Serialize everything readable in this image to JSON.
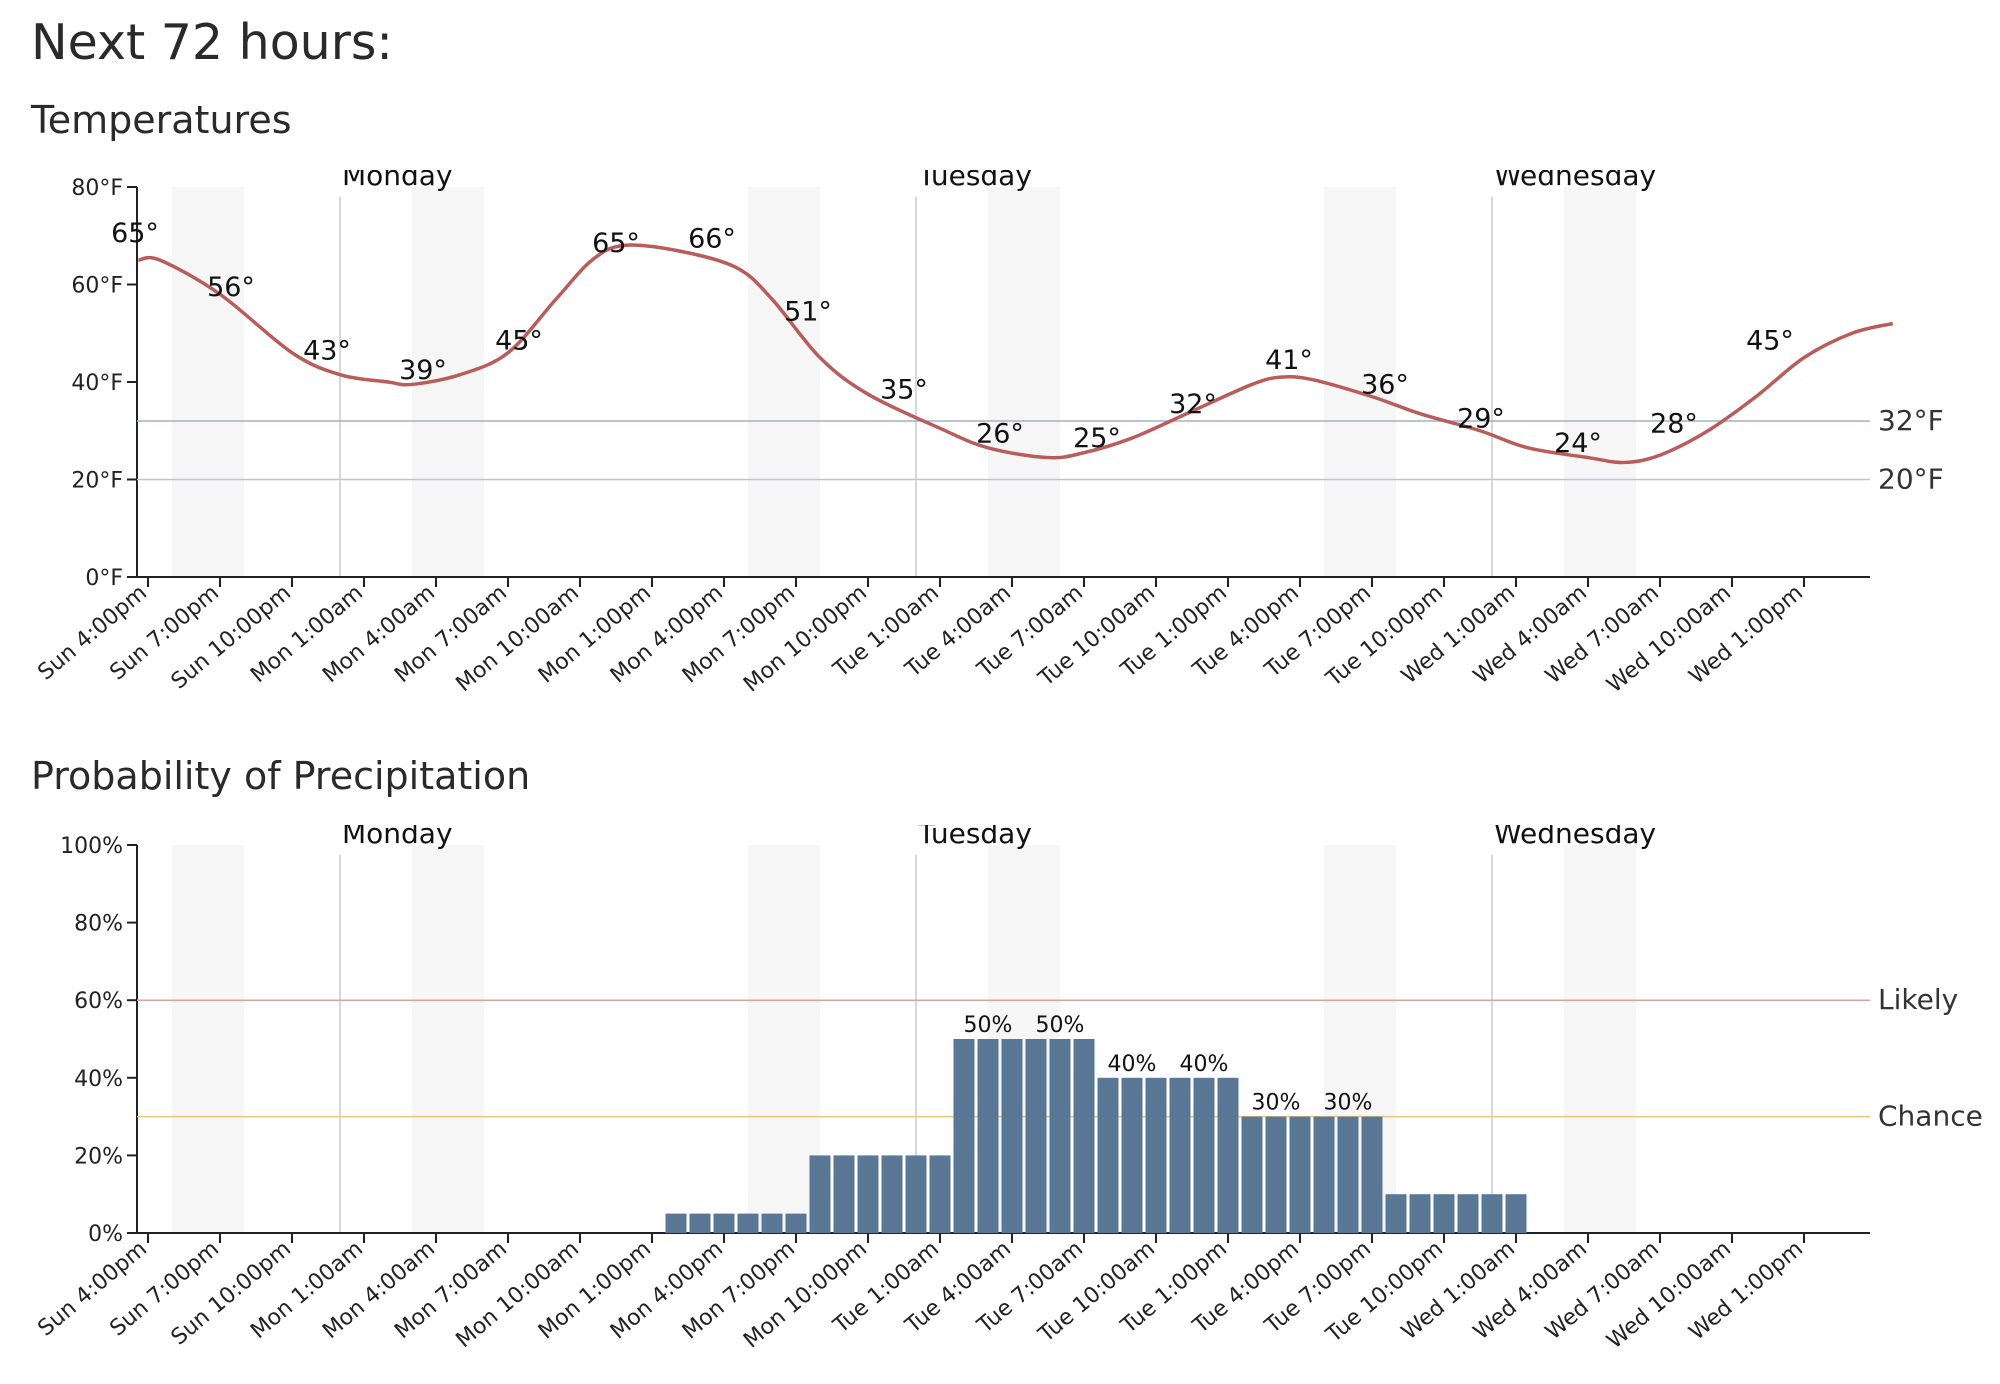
{
  "page": {
    "title": "Next 72 hours:"
  },
  "chart_data": [
    {
      "type": "line",
      "title": "Temperatures",
      "y_unit": "°F",
      "ylim": [
        0,
        80
      ],
      "y_ticks": [
        "0°F",
        "20°F",
        "40°F",
        "60°F",
        "80°F"
      ],
      "x_ticks": [
        "Sun 4:00pm",
        "Sun 7:00pm",
        "Sun 10:00pm",
        "Mon 1:00am",
        "Mon 4:00am",
        "Mon 7:00am",
        "Mon 10:00am",
        "Mon 1:00pm",
        "Mon 4:00pm",
        "Mon 7:00pm",
        "Mon 10:00pm",
        "Tue 1:00am",
        "Tue 4:00am",
        "Tue 7:00am",
        "Tue 10:00am",
        "Tue 1:00pm",
        "Tue 4:00pm",
        "Tue 7:00pm",
        "Tue 10:00pm",
        "Wed 1:00am",
        "Wed 4:00am",
        "Wed 7:00am",
        "Wed 10:00am",
        "Wed 1:00pm"
      ],
      "day_labels": [
        "Monday",
        "Tuesday",
        "Wednesday"
      ],
      "values": [
        65,
        56,
        43,
        39,
        45,
        65,
        66,
        51,
        35,
        26,
        25,
        32,
        41,
        36,
        29,
        24,
        28,
        45
      ],
      "point_labels": [
        "65°",
        "56°",
        "43°",
        "39°",
        "45°",
        "65°",
        "66°",
        "51°",
        "35°",
        "26°",
        "25°",
        "32°",
        "41°",
        "36°",
        "29°",
        "24°",
        "28°",
        "45°"
      ],
      "reference_lines": [
        {
          "label": "32°F",
          "value": 32,
          "color": "#9fb3c4"
        },
        {
          "label": "20°F",
          "value": 20,
          "color": "#b8c7d4"
        }
      ],
      "line_color": "#b85c5c"
    },
    {
      "type": "bar",
      "title": "Probability of Precipitation",
      "ylim": [
        0,
        100
      ],
      "y_ticks": [
        "0%",
        "20%",
        "40%",
        "60%",
        "80%",
        "100%"
      ],
      "x_ticks": [
        "Sun 4:00pm",
        "Sun 7:00pm",
        "Sun 10:00pm",
        "Mon 1:00am",
        "Mon 4:00am",
        "Mon 7:00am",
        "Mon 10:00am",
        "Mon 1:00pm",
        "Mon 4:00pm",
        "Mon 7:00pm",
        "Mon 10:00pm",
        "Tue 1:00am",
        "Tue 4:00am",
        "Tue 7:00am",
        "Tue 10:00am",
        "Tue 1:00pm",
        "Tue 4:00pm",
        "Tue 7:00pm",
        "Tue 10:00pm",
        "Wed 1:00am",
        "Wed 4:00am",
        "Wed 7:00am",
        "Wed 10:00am",
        "Wed 1:00pm"
      ],
      "day_labels": [
        "Monday",
        "Tuesday",
        "Wednesday"
      ],
      "values": [
        0,
        0,
        0,
        0,
        0,
        0,
        0,
        0,
        0,
        0,
        0,
        0,
        0,
        0,
        0,
        0,
        0,
        0,
        0,
        0,
        0,
        0,
        5,
        5,
        5,
        5,
        5,
        5,
        20,
        20,
        20,
        20,
        20,
        20,
        50,
        50,
        50,
        50,
        50,
        50,
        40,
        40,
        40,
        40,
        40,
        40,
        30,
        30,
        30,
        30,
        30,
        30,
        10,
        10,
        10,
        10,
        10,
        10,
        0,
        0,
        0,
        0,
        0,
        0,
        0,
        0,
        0,
        0,
        0,
        0,
        0,
        0,
        0,
        0,
        0,
        0,
        0,
        0,
        0,
        0,
        0
      ],
      "bar_labels": [
        {
          "text": "50%",
          "index": 35
        },
        {
          "text": "50%",
          "index": 38
        },
        {
          "text": "40%",
          "index": 41
        },
        {
          "text": "40%",
          "index": 44
        },
        {
          "text": "30%",
          "index": 47
        },
        {
          "text": "30%",
          "index": 50
        }
      ],
      "reference_lines": [
        {
          "label": "Likely",
          "value": 60,
          "color": "#e0a0a0"
        },
        {
          "label": "Chance",
          "value": 30,
          "color": "#e8c878"
        }
      ],
      "bar_color": "#5a7896"
    }
  ]
}
